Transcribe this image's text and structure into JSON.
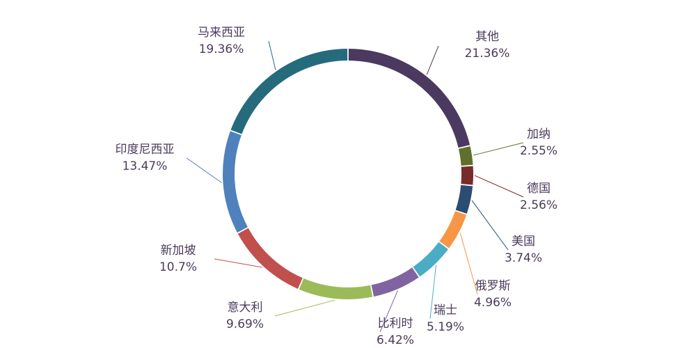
{
  "chart_data": {
    "type": "pie",
    "variant": "donut",
    "grid": false,
    "legend": "none",
    "categories": [
      "其他",
      "加纳",
      "德国",
      "美国",
      "俄罗斯",
      "瑞士",
      "比利时",
      "意大利",
      "新加坡",
      "印度尼西亚",
      "马来西亚"
    ],
    "values": [
      21.36,
      2.55,
      2.56,
      3.74,
      4.96,
      5.19,
      6.42,
      9.69,
      10.7,
      13.47,
      19.36
    ],
    "value_labels": [
      "21.36%",
      "2.55%",
      "2.56%",
      "3.74%",
      "4.96%",
      "5.19%",
      "6.42%",
      "9.69%",
      "10.7%",
      "13.47%",
      "19.36%"
    ],
    "colors": [
      "#4b3960",
      "#5e702c",
      "#772b2a",
      "#2b4c73",
      "#f79646",
      "#4bacc6",
      "#8064a2",
      "#9bbb59",
      "#c0504d",
      "#4f81bd",
      "#256b7c"
    ]
  }
}
